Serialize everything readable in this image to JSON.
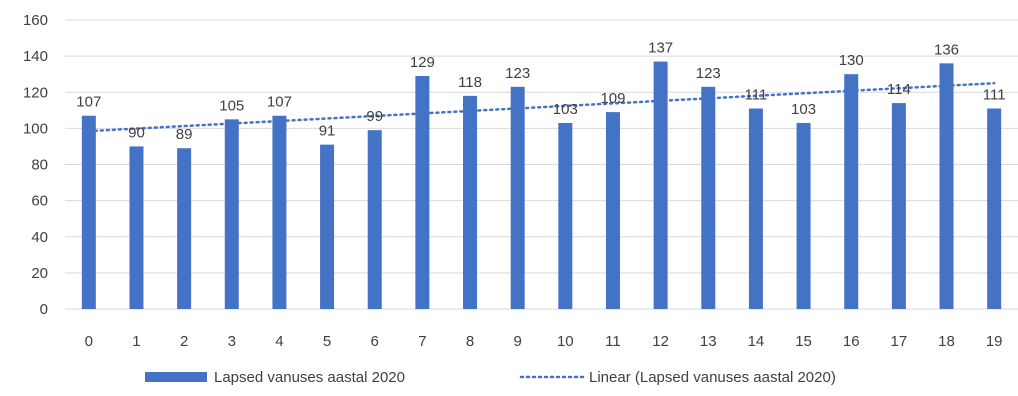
{
  "chart_data": {
    "type": "bar",
    "categories": [
      "0",
      "1",
      "2",
      "3",
      "4",
      "5",
      "6",
      "7",
      "8",
      "9",
      "10",
      "11",
      "12",
      "13",
      "14",
      "15",
      "16",
      "17",
      "18",
      "19"
    ],
    "series": [
      {
        "name": "Lapsed vanuses aastal 2020",
        "values": [
          107,
          90,
          89,
          105,
          107,
          91,
          99,
          129,
          118,
          123,
          103,
          109,
          137,
          123,
          111,
          103,
          130,
          114,
          136,
          111
        ],
        "color": "#4472C4"
      }
    ],
    "trendline": {
      "type": "linear",
      "name": "Linear (Lapsed vanuses aastal 2020)",
      "color": "#4472C4",
      "style": "dotted"
    },
    "y_ticks": [
      "0",
      "20",
      "40",
      "60",
      "80",
      "100",
      "120",
      "140",
      "160"
    ],
    "ylim": [
      0,
      160
    ],
    "data_labels": true,
    "grid": true,
    "gridline_color": "#d9d9d9",
    "legend_position": "bottom",
    "title": "",
    "xlabel": "",
    "ylabel": ""
  }
}
